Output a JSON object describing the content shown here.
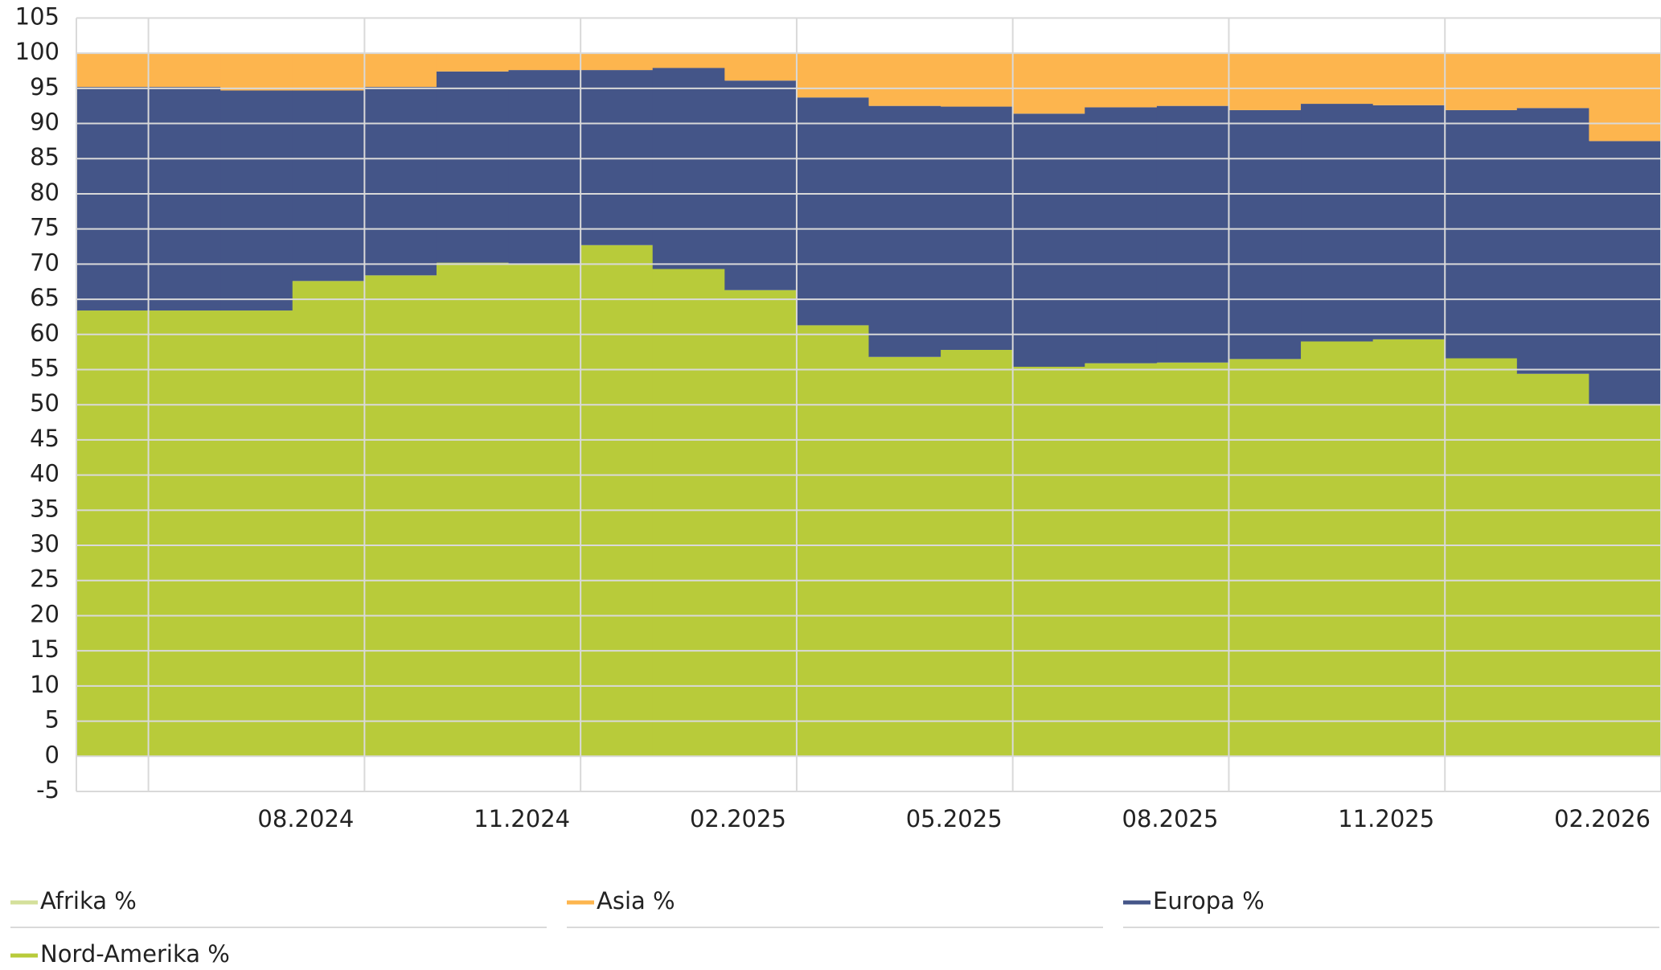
{
  "chart_data": {
    "type": "stacked-step-area",
    "xlim": [
      0,
      22
    ],
    "xticks": [
      0,
      1,
      {
        "value": 4,
        "label": "08.2024"
      },
      {
        "value": 7,
        "label": "11.2024"
      },
      {
        "value": 10,
        "label": "02.2025"
      },
      {
        "value": 13,
        "label": "05.2025"
      },
      {
        "value": 16,
        "label": "08.2025"
      },
      {
        "value": 19,
        "label": "11.2025"
      },
      {
        "value": 22,
        "label": "02.2026"
      }
    ],
    "ylim": [
      -5,
      105
    ],
    "yticks": [
      -5,
      0,
      5,
      10,
      15,
      20,
      25,
      30,
      35,
      40,
      45,
      50,
      55,
      60,
      65,
      70,
      75,
      80,
      85,
      90,
      95,
      100,
      105
    ],
    "grid": true,
    "legend": "bottom",
    "series": [
      {
        "name": "Nord-Amerika %",
        "color": "#b8cb3a",
        "values": [
          63.4,
          63.4,
          63.4,
          67.6,
          68.4,
          70.2,
          70.1,
          72.7,
          69.3,
          66.3,
          61.3,
          56.8,
          57.8,
          55.4,
          55.9,
          56.0,
          56.5,
          59.0,
          59.3,
          56.6,
          54.4,
          50.0
        ]
      },
      {
        "name": "Europa %",
        "color": "#445588",
        "values": [
          31.8,
          31.8,
          31.3,
          27.1,
          26.8,
          27.2,
          27.5,
          24.9,
          28.6,
          29.8,
          32.4,
          35.7,
          34.6,
          36.0,
          36.4,
          36.5,
          35.4,
          33.8,
          33.3,
          35.3,
          37.8,
          37.5
        ]
      },
      {
        "name": "Asia %",
        "color": "#fdb54e",
        "values": [
          4.8,
          4.8,
          5.3,
          5.3,
          4.8,
          2.6,
          2.4,
          2.4,
          2.1,
          3.9,
          6.3,
          7.5,
          7.6,
          8.6,
          7.7,
          7.5,
          8.1,
          7.2,
          7.4,
          8.1,
          7.8,
          12.5
        ]
      },
      {
        "name": "Afrika %",
        "color": "#d4e09b",
        "values": [
          0,
          0,
          0,
          0,
          0,
          0,
          0,
          0,
          0,
          0,
          0,
          0,
          0,
          0,
          0,
          0,
          0,
          0,
          0,
          0,
          0,
          0
        ]
      }
    ],
    "legend_order": [
      3,
      2,
      1,
      0
    ]
  }
}
